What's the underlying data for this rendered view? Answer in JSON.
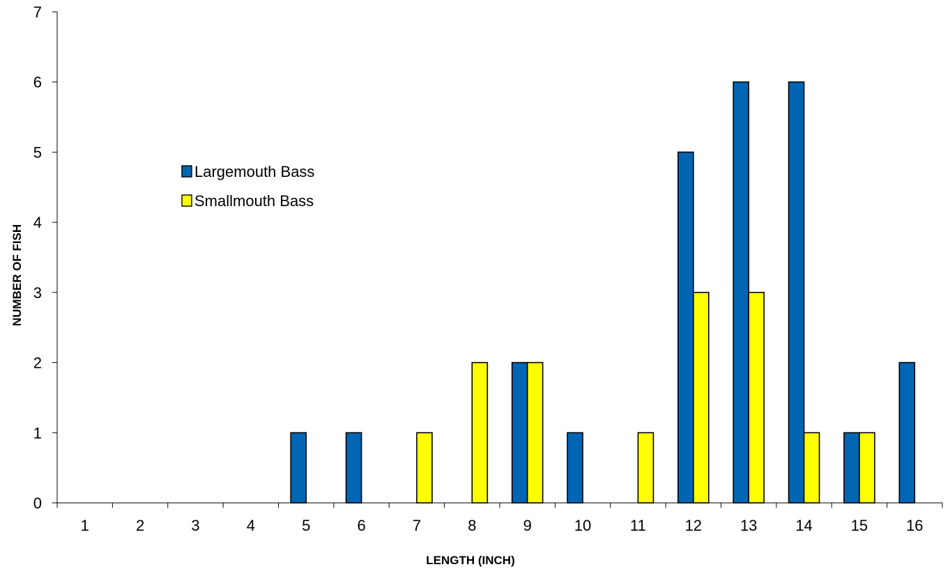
{
  "chart_data": {
    "type": "bar",
    "title": "",
    "xlabel": "LENGTH   (INCH)",
    "ylabel": "NUMBER   OF FISH",
    "categories": [
      "1",
      "2",
      "3",
      "4",
      "5",
      "6",
      "7",
      "8",
      "9",
      "10",
      "11",
      "12",
      "13",
      "14",
      "15",
      "16"
    ],
    "ylim": [
      0,
      7
    ],
    "yticks": [
      0,
      1,
      2,
      3,
      4,
      5,
      6,
      7
    ],
    "grid": false,
    "legend_position": "upper-left-inside",
    "series": [
      {
        "name": "Largemouth Bass",
        "color": "#0066B3",
        "values": [
          0,
          0,
          0,
          0,
          1,
          1,
          0,
          0,
          2,
          1,
          0,
          5,
          6,
          6,
          1,
          2
        ]
      },
      {
        "name": "Smallmouth Bass",
        "color": "#FFFF00",
        "values": [
          0,
          0,
          0,
          0,
          0,
          0,
          1,
          2,
          2,
          0,
          1,
          3,
          3,
          1,
          1,
          0
        ]
      }
    ]
  }
}
